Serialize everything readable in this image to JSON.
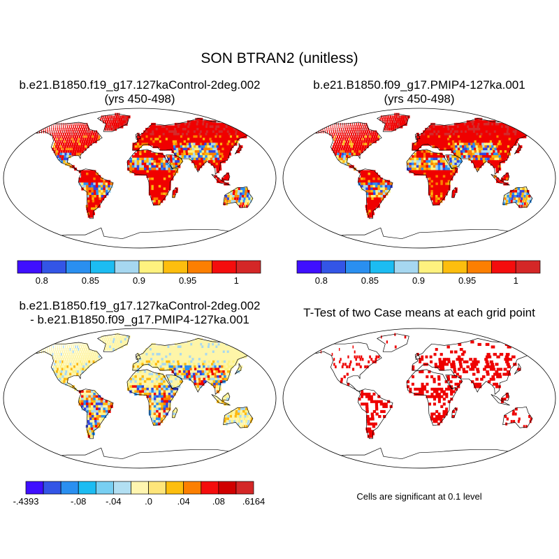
{
  "figure": {
    "title": "SON BTRAN2 (unitless)"
  },
  "panels": [
    {
      "title_line1": "b.e21.B1850.f19_g17.127kaControl-2deg.002",
      "title_line2": "(yrs 450-498)",
      "fill": "mostly-high"
    },
    {
      "title_line1": "b.e21.B1850.f09_g17.PMIP4-127ka.001",
      "title_line2": "(yrs 450-498)",
      "fill": "mostly-high"
    },
    {
      "title_line1": "b.e21.B1850.f19_g17.127kaControl-2deg.002",
      "title_line2": "- b.e21.B1850.f09_g17.PMIP4-127ka.001",
      "fill": "difference"
    },
    {
      "title_line1": "T-Test of two Case means at each grid point",
      "title_line2": "",
      "fill": "significance",
      "note": "Cells are significant at 0.1 level"
    }
  ],
  "colorbars": {
    "absolute": {
      "colors": [
        "#3f0fff",
        "#3355e6",
        "#2a8ff0",
        "#1cbcf2",
        "#a6d7f0",
        "#fef27f",
        "#fdbe0e",
        "#fc7f01",
        "#f40d0d",
        "#d42727"
      ],
      "labels": [
        "0.8",
        "0.85",
        "0.9",
        "0.95",
        "1"
      ]
    },
    "difference": {
      "colors": [
        "#3f0fff",
        "#3355e6",
        "#2a8ff0",
        "#1cbcf2",
        "#78cff2",
        "#b2dff2",
        "#fff5b0",
        "#fee57a",
        "#fdbe0e",
        "#fc7f01",
        "#f40d0d",
        "#d00000",
        "#d42727"
      ],
      "labels": [
        ".6164",
        ".08",
        ".04",
        ".0",
        "-.04",
        "-.08",
        "-.4393"
      ]
    }
  },
  "map_colors": {
    "high": "#f00000",
    "top": "#d42a2a",
    "orange": "#fc8000",
    "gold": "#fdb90e",
    "yellow": "#fef27f",
    "lightblue": "#a8d8f0",
    "blue": "#2a8ff0",
    "navy": "#3344e0",
    "land_neutral": "#fef5a8",
    "significant": "#ee0000"
  }
}
